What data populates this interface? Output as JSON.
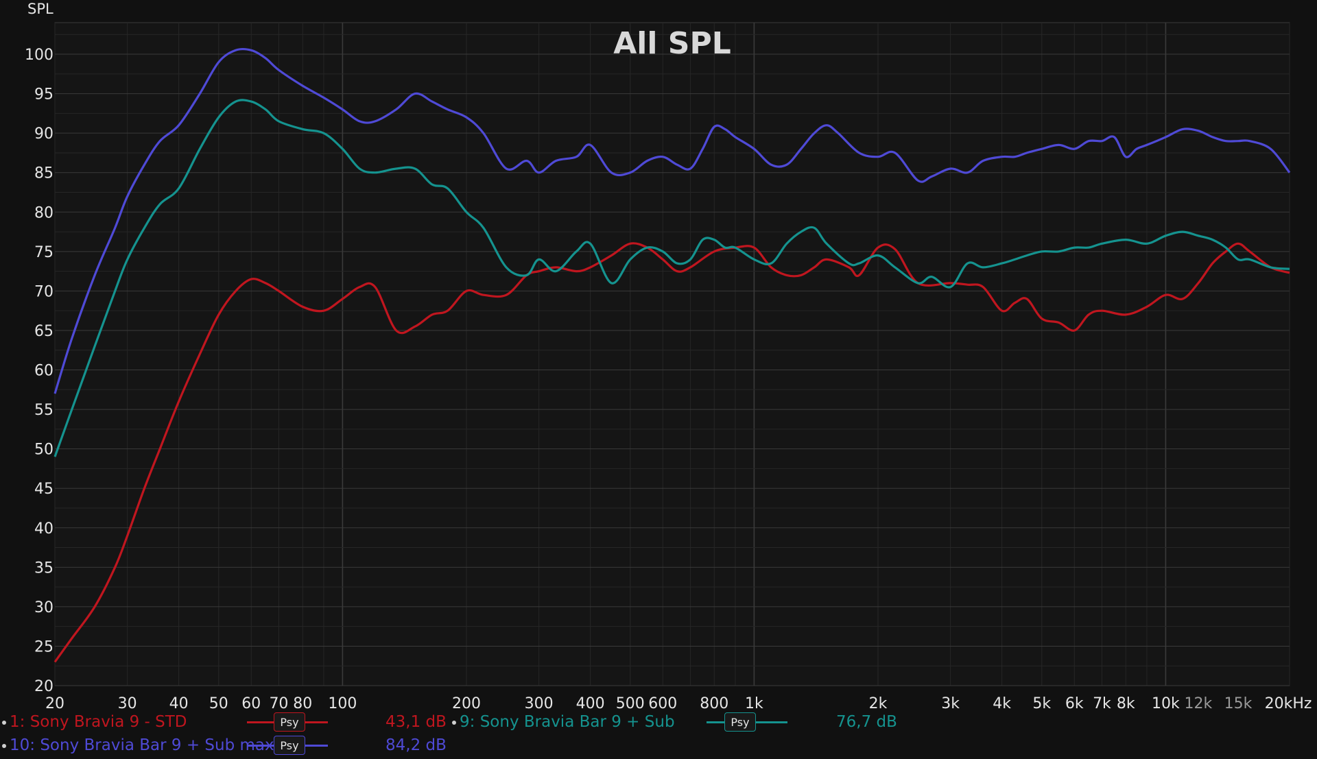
{
  "chart_data": {
    "type": "line",
    "title": "All SPL",
    "ylabel": "SPL",
    "xunit": "kHz",
    "xscale": "log",
    "xlim": [
      20,
      20000
    ],
    "ylim": [
      20,
      104
    ],
    "grid": true,
    "yticks": [
      20,
      25,
      30,
      35,
      40,
      45,
      50,
      55,
      60,
      65,
      70,
      75,
      80,
      85,
      90,
      95,
      100
    ],
    "xticks": [
      {
        "v": 20,
        "label": "20"
      },
      {
        "v": 30,
        "label": "30"
      },
      {
        "v": 40,
        "label": "40"
      },
      {
        "v": 50,
        "label": "50"
      },
      {
        "v": 60,
        "label": "60"
      },
      {
        "v": 70,
        "label": "70"
      },
      {
        "v": 80,
        "label": "80"
      },
      {
        "v": 100,
        "label": "100"
      },
      {
        "v": 200,
        "label": "200"
      },
      {
        "v": 300,
        "label": "300"
      },
      {
        "v": 400,
        "label": "400"
      },
      {
        "v": 500,
        "label": "500"
      },
      {
        "v": 600,
        "label": "600"
      },
      {
        "v": 800,
        "label": "800"
      },
      {
        "v": 1000,
        "label": "1k"
      },
      {
        "v": 2000,
        "label": "2k"
      },
      {
        "v": 3000,
        "label": "3k"
      },
      {
        "v": 4000,
        "label": "4k"
      },
      {
        "v": 5000,
        "label": "5k"
      },
      {
        "v": 6000,
        "label": "6k"
      },
      {
        "v": 7000,
        "label": "7k"
      },
      {
        "v": 8000,
        "label": "8k"
      },
      {
        "v": 10000,
        "label": "10k"
      },
      {
        "v": 12000,
        "label": "12k",
        "dim": true
      },
      {
        "v": 15000,
        "label": "15k",
        "dim": true
      },
      {
        "v": 20000,
        "label": "20kHz"
      }
    ],
    "series": [
      {
        "name": "1: Sony Bravia 9 - STD",
        "color": "#c0161f",
        "x": [
          20,
          22,
          25,
          28,
          30,
          33,
          36,
          40,
          45,
          50,
          55,
          60,
          65,
          70,
          80,
          90,
          100,
          110,
          120,
          135,
          150,
          165,
          180,
          200,
          220,
          250,
          280,
          300,
          330,
          370,
          400,
          450,
          500,
          550,
          600,
          650,
          700,
          800,
          900,
          1000,
          1100,
          1200,
          1300,
          1400,
          1500,
          1700,
          1800,
          2000,
          2200,
          2500,
          3000,
          3300,
          3600,
          4000,
          4300,
          4600,
          5000,
          5500,
          6000,
          6500,
          7000,
          8000,
          9000,
          10000,
          11000,
          12000,
          13000,
          14000,
          15000,
          16000,
          18000,
          20000
        ],
        "y": [
          23,
          26,
          30,
          35,
          39,
          45,
          50,
          56,
          62,
          67,
          70,
          71.5,
          71,
          70,
          68,
          67.5,
          69,
          70.5,
          70.5,
          65,
          65.5,
          67,
          67.5,
          70,
          69.5,
          69.5,
          72,
          72.5,
          73,
          72.5,
          73,
          74.5,
          76,
          75.5,
          74,
          72.5,
          73,
          75,
          75.5,
          75.5,
          73,
          72,
          72,
          73,
          74,
          73,
          72,
          75.5,
          75.3,
          71,
          71,
          70.8,
          70.5,
          67.5,
          68.5,
          69,
          66.5,
          66,
          65,
          67,
          67.5,
          67,
          68,
          69.5,
          69,
          71,
          73.5,
          75,
          76,
          75,
          73,
          72.3
        ]
      },
      {
        "name": "9: Sony Bravia Bar 9 + Sub",
        "color": "#15938f",
        "x": [
          20,
          22,
          25,
          28,
          30,
          33,
          36,
          40,
          45,
          50,
          55,
          60,
          65,
          70,
          80,
          90,
          100,
          110,
          120,
          135,
          150,
          165,
          180,
          200,
          220,
          250,
          280,
          300,
          330,
          370,
          400,
          450,
          500,
          550,
          600,
          650,
          700,
          750,
          800,
          850,
          900,
          1000,
          1100,
          1200,
          1300,
          1400,
          1500,
          1700,
          1800,
          2000,
          2200,
          2500,
          2700,
          3000,
          3300,
          3600,
          4000,
          4300,
          4600,
          5000,
          5500,
          6000,
          6500,
          7000,
          8000,
          9000,
          10000,
          11000,
          12000,
          13000,
          14000,
          15000,
          16000,
          18000,
          20000
        ],
        "y": [
          49,
          55,
          63,
          70,
          74,
          78,
          81,
          83,
          88,
          92,
          94,
          94,
          93,
          91.5,
          90.5,
          90,
          88,
          85.5,
          85,
          85.5,
          85.5,
          83.5,
          83,
          80,
          78,
          73,
          72,
          74,
          72.5,
          75,
          76,
          71,
          74,
          75.5,
          75,
          73.5,
          74,
          76.5,
          76.5,
          75.5,
          75.5,
          74,
          73.5,
          76,
          77.5,
          78,
          76,
          73.5,
          73.5,
          74.5,
          73,
          71,
          71.8,
          70.5,
          73.5,
          73,
          73.5,
          74,
          74.5,
          75,
          75,
          75.5,
          75.5,
          76,
          76.5,
          76,
          77,
          77.5,
          77,
          76.5,
          75.5,
          74,
          74,
          73,
          72.8
        ]
      },
      {
        "name": "10: Sony Bravia Bar 9 + Sub max",
        "color": "#4f4ad6",
        "x": [
          20,
          22,
          25,
          28,
          30,
          33,
          36,
          40,
          45,
          50,
          55,
          60,
          65,
          70,
          80,
          90,
          100,
          110,
          120,
          135,
          150,
          165,
          180,
          200,
          220,
          250,
          280,
          300,
          330,
          370,
          400,
          450,
          500,
          550,
          600,
          650,
          700,
          750,
          800,
          850,
          900,
          1000,
          1100,
          1200,
          1300,
          1400,
          1500,
          1600,
          1800,
          2000,
          2200,
          2500,
          2700,
          3000,
          3300,
          3600,
          4000,
          4300,
          4600,
          5000,
          5500,
          6000,
          6500,
          7000,
          7500,
          8000,
          8500,
          9000,
          10000,
          11000,
          12000,
          13000,
          14000,
          15000,
          16000,
          18000,
          20000
        ],
        "y": [
          57,
          64,
          72,
          78,
          82,
          86,
          89,
          91,
          95,
          99,
          100.5,
          100.5,
          99.5,
          98,
          96,
          94.5,
          93,
          91.5,
          91.5,
          93,
          95,
          94,
          93,
          92,
          90,
          85.5,
          86.5,
          85,
          86.5,
          87,
          88.5,
          85,
          85,
          86.5,
          87,
          86,
          85.5,
          88,
          90.8,
          90.5,
          89.5,
          88,
          86,
          86,
          88,
          90,
          91,
          90,
          87.5,
          87,
          87.5,
          84,
          84.5,
          85.5,
          85,
          86.5,
          87,
          87,
          87.5,
          88,
          88.5,
          88,
          89,
          89,
          89.5,
          87,
          88,
          88.5,
          89.5,
          90.5,
          90.3,
          89.5,
          89,
          89,
          89,
          88,
          85
        ]
      }
    ]
  },
  "legend": [
    {
      "label": "1: Sony Bravia 9 - STD",
      "psy": "Psy",
      "value": "43,1 dB",
      "color": "#c0161f"
    },
    {
      "label": "9: Sony Bravia Bar 9 + Sub",
      "psy": "Psy",
      "value": "76,7 dB",
      "color": "#15938f"
    },
    {
      "label": "10: Sony Bravia Bar 9 + Sub max",
      "psy": "Psy",
      "value": "84,2 dB",
      "color": "#4f4ad6"
    }
  ],
  "colors": {
    "background": "#111111",
    "plot_bg": "#151515",
    "grid_major": "#3a3a3a",
    "grid_minor": "#262626",
    "text": "#e6e6e6",
    "dim_text": "#9a9a9a",
    "psy_border": "#15938f"
  }
}
